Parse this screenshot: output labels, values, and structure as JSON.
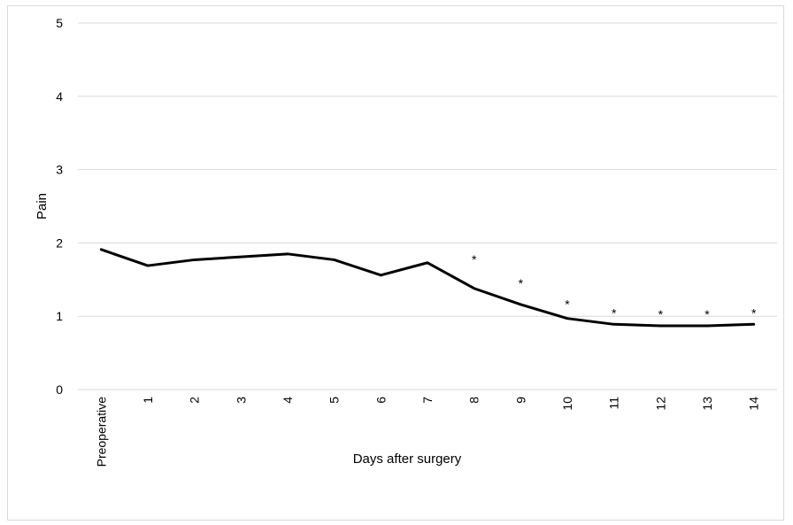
{
  "chart_data": {
    "type": "line",
    "title": "",
    "xlabel": "Days after surgery",
    "ylabel": "Pain",
    "categories": [
      "Preoperative",
      "1",
      "2",
      "3",
      "4",
      "5",
      "6",
      "7",
      "8",
      "9",
      "10",
      "11",
      "12",
      "13",
      "14"
    ],
    "series": [
      {
        "values": [
          1.91,
          1.69,
          1.77,
          1.81,
          1.85,
          1.77,
          1.56,
          1.73,
          1.38,
          1.16,
          0.97,
          0.89,
          0.87,
          0.87,
          0.89
        ]
      }
    ],
    "significance_marker": "*",
    "significant_categories": [
      "8",
      "9",
      "10",
      "11",
      "12",
      "13",
      "14"
    ],
    "ylim": [
      0,
      5
    ],
    "yticks": [
      "0",
      "1",
      "2",
      "3",
      "4",
      "5"
    ],
    "grid": true,
    "legend": "none",
    "colors": {
      "line": "#000000",
      "grid": "#d9d9d9"
    }
  }
}
